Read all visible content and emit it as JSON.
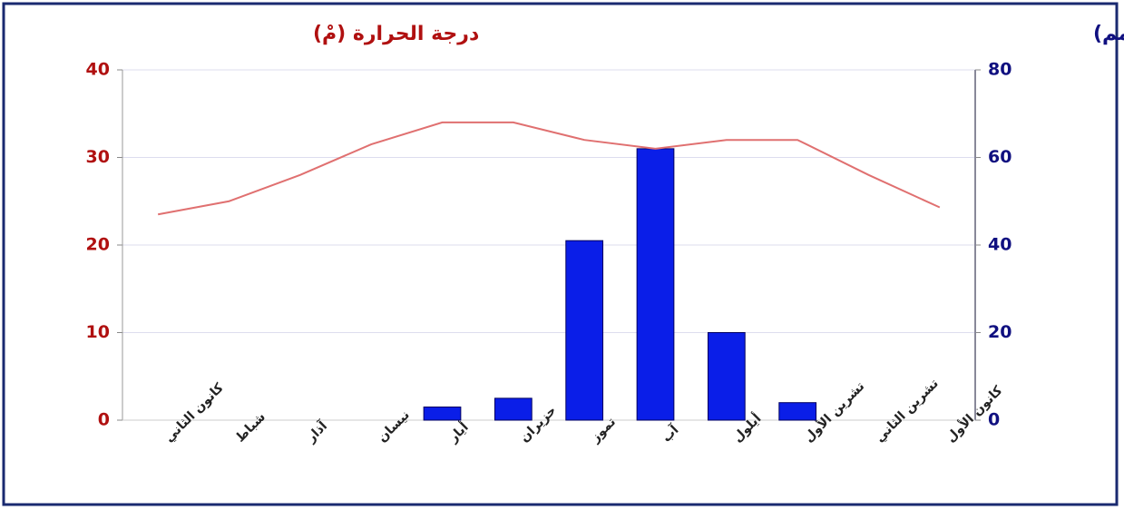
{
  "chart_data": {
    "type": "combo",
    "ylabel": "درجة الحرارة (مْ)",
    "y2label": "كمية الهطل(مم)",
    "categories": [
      "كانون الثاني",
      "شباط",
      "آذار",
      "نيسان",
      "أيار",
      "حزيران",
      "تموز",
      "آب",
      "أيلول",
      "تشرين الأول",
      "تشرين الثاني",
      "كانون الأول"
    ],
    "series": [
      {
        "type": "bar",
        "axis": "y2",
        "color": "#0a1ee8",
        "values": [
          0,
          0,
          0,
          0,
          3,
          5,
          41,
          62,
          20,
          4,
          0,
          0
        ]
      },
      {
        "type": "line",
        "axis": "y",
        "color": "#e07070",
        "values": [
          23.5,
          25,
          28,
          31.5,
          34,
          34,
          32,
          31,
          32,
          32,
          28,
          24.3
        ]
      }
    ],
    "ylim": [
      0,
      40
    ],
    "yticks": [
      0,
      10,
      20,
      30,
      40
    ],
    "ycolor": "#b01010",
    "y2lim": [
      0,
      80
    ],
    "y2ticks": [
      0,
      20,
      40,
      60,
      80
    ],
    "y2color": "#101080",
    "grid": true
  }
}
